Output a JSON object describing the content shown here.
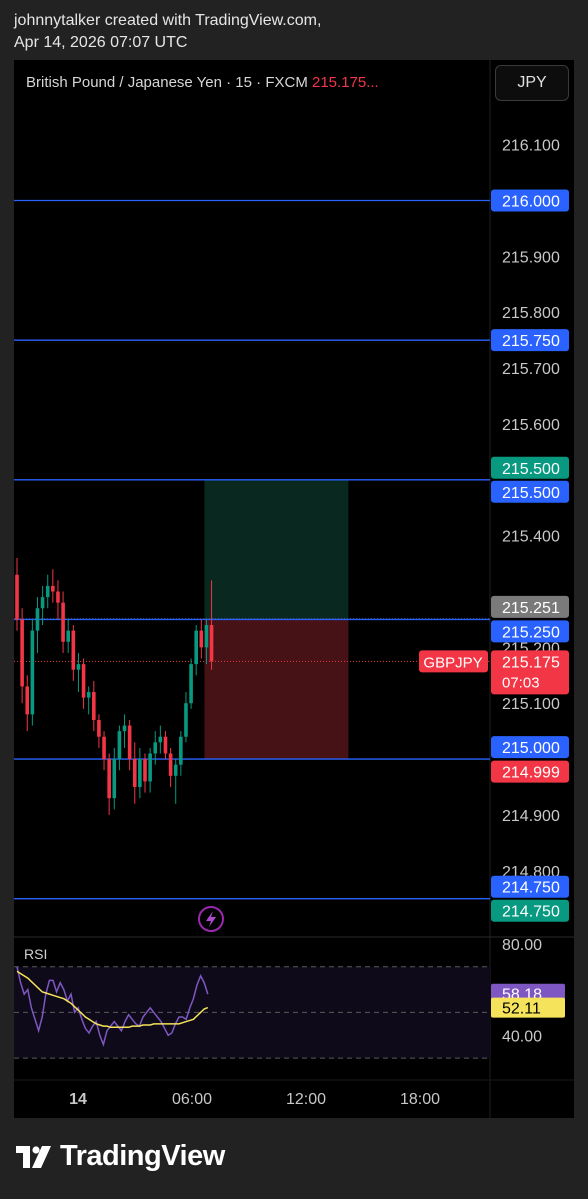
{
  "attribution": {
    "line1": "johnnytalker created with TradingView.com,",
    "line2": "Apr 14, 2026 07:07 UTC"
  },
  "header": {
    "symbol_text": "British Pound / Japanese Yen · 15 · FXCM",
    "price_text": "215.175...",
    "currency_button": "JPY"
  },
  "colors": {
    "up": "#089981",
    "down": "#f23645",
    "hline": "#2962ff",
    "rsi_line": "#7e57c2",
    "rsi_ma": "#f5e35b",
    "panel_bg": "#000000",
    "page_bg": "#222222"
  },
  "icons": {
    "alert": "lightning-bolt-icon",
    "logo": "tradingview-logo-icon"
  },
  "chart_data": {
    "type": "candlestick",
    "title": "British Pound / Japanese Yen · 15 · FXCM",
    "symbol": "GBPJPY",
    "ylim": [
      214.685,
      216.18
    ],
    "y_ticks": [
      "216.100",
      "215.900",
      "215.800",
      "215.700",
      "215.600",
      "215.400",
      "215.200",
      "215.100",
      "214.900",
      "214.800"
    ],
    "x_ticks": [
      "14",
      "06:00",
      "12:00",
      "18:00"
    ],
    "horizontal_lines": [
      216.0,
      215.75,
      215.5,
      215.25,
      215.0,
      214.75
    ],
    "candles": [
      [
        215.33,
        215.36,
        215.23,
        215.25
      ],
      [
        215.25,
        215.27,
        215.1,
        215.13
      ],
      [
        215.13,
        215.15,
        215.05,
        215.08
      ],
      [
        215.08,
        215.25,
        215.06,
        215.23
      ],
      [
        215.23,
        215.29,
        215.19,
        215.27
      ],
      [
        215.27,
        215.31,
        215.24,
        215.29
      ],
      [
        215.29,
        215.33,
        215.27,
        215.31
      ],
      [
        215.31,
        215.34,
        215.28,
        215.3
      ],
      [
        215.3,
        215.32,
        215.25,
        215.28
      ],
      [
        215.28,
        215.3,
        215.19,
        215.21
      ],
      [
        215.21,
        215.25,
        215.19,
        215.23
      ],
      [
        215.23,
        215.24,
        215.14,
        215.16
      ],
      [
        215.16,
        215.19,
        215.12,
        215.17
      ],
      [
        215.17,
        215.18,
        215.09,
        215.11
      ],
      [
        215.11,
        215.13,
        215.08,
        215.12
      ],
      [
        215.12,
        215.14,
        215.05,
        215.07
      ],
      [
        215.07,
        215.08,
        215.02,
        215.04
      ],
      [
        215.04,
        215.05,
        214.98,
        215.0
      ],
      [
        215.0,
        215.01,
        214.9,
        214.93
      ],
      [
        214.93,
        215.02,
        214.91,
        215.0
      ],
      [
        215.0,
        215.06,
        214.98,
        215.05
      ],
      [
        215.05,
        215.08,
        215.02,
        215.06
      ],
      [
        215.06,
        215.07,
        214.98,
        215.0
      ],
      [
        215.0,
        215.03,
        214.92,
        214.95
      ],
      [
        214.95,
        215.02,
        214.93,
        215.0
      ],
      [
        215.0,
        215.01,
        214.94,
        214.96
      ],
      [
        214.96,
        215.02,
        214.94,
        215.01
      ],
      [
        215.01,
        215.05,
        214.99,
        215.03
      ],
      [
        215.03,
        215.06,
        215.01,
        215.04
      ],
      [
        215.04,
        215.05,
        215.0,
        215.01
      ],
      [
        215.01,
        215.02,
        214.95,
        214.97
      ],
      [
        214.97,
        215.0,
        214.92,
        214.99
      ],
      [
        214.99,
        215.05,
        214.97,
        215.04
      ],
      [
        215.04,
        215.12,
        215.03,
        215.1
      ],
      [
        215.1,
        215.18,
        215.09,
        215.17
      ],
      [
        215.17,
        215.24,
        215.15,
        215.23
      ],
      [
        215.23,
        215.25,
        215.18,
        215.2
      ],
      [
        215.2,
        215.25,
        215.17,
        215.24
      ],
      [
        215.24,
        215.32,
        215.16,
        215.175
      ]
    ],
    "position": {
      "type": "short",
      "entry": 215.25,
      "target": 215.0,
      "stop": 215.5,
      "start_bar": 37,
      "bars": 30
    },
    "price_labels": [
      {
        "text": "216.000",
        "value": 216.0,
        "color": "#2962ff"
      },
      {
        "text": "215.750",
        "value": 215.75,
        "color": "#2962ff"
      },
      {
        "text": "215.500",
        "value": 215.5,
        "color": "#089981",
        "offset": -12
      },
      {
        "text": "215.500",
        "value": 215.5,
        "color": "#2962ff",
        "offset": 12
      },
      {
        "text": "215.251",
        "value": 215.251,
        "color": "#7a7a7a",
        "offset": -12
      },
      {
        "text": "215.250",
        "value": 215.25,
        "color": "#2962ff",
        "offset": 12
      },
      {
        "text": "215.000",
        "value": 215.0,
        "color": "#2962ff",
        "offset": -12
      },
      {
        "text": "214.999",
        "value": 214.999,
        "color": "#f23645",
        "offset": 12
      },
      {
        "text": "214.750",
        "value": 214.75,
        "color": "#2962ff",
        "offset": -12
      },
      {
        "text": "214.750",
        "value": 214.75,
        "color": "#089981",
        "offset": 12
      }
    ],
    "last_price": {
      "symbol": "GBPJPY",
      "value": "215.175",
      "countdown": "07:03",
      "y": 215.175
    },
    "rsi": {
      "label": "RSI",
      "ylim": [
        27,
        83
      ],
      "y_ticks": [
        "80.00",
        "40.00"
      ],
      "bands": [
        70,
        50,
        30
      ],
      "values": [
        70,
        63,
        58,
        60,
        52,
        47,
        42,
        48,
        58,
        64,
        64,
        59,
        63,
        60,
        55,
        58,
        50,
        52,
        47,
        43,
        41,
        44,
        46,
        40,
        36,
        42,
        44,
        46,
        44,
        42,
        46,
        49,
        47,
        45,
        44,
        48,
        50,
        52,
        50,
        48,
        46,
        43,
        40,
        41,
        45,
        48,
        48,
        47,
        52,
        56,
        62,
        66,
        63,
        58
      ],
      "ma": [
        68,
        67,
        66,
        65,
        63.5,
        62,
        60.5,
        59,
        58.5,
        58,
        57.5,
        57,
        56.5,
        56,
        55,
        54,
        52.5,
        51,
        49.5,
        48,
        47,
        46,
        45,
        44.5,
        44,
        44,
        43.5,
        43.5,
        43.5,
        43.5,
        43.5,
        43.5,
        44,
        44,
        44,
        44.5,
        44.5,
        44.5,
        45,
        45,
        45,
        45,
        45,
        45,
        45,
        45,
        45.5,
        46,
        46.5,
        47,
        48.5,
        50,
        51.5,
        52.11
      ],
      "labels": [
        {
          "text": "58.18",
          "value": 58.18,
          "color": "#7e57c2"
        },
        {
          "text": "52.11",
          "value": 52.11,
          "color": "#f5e35b"
        }
      ]
    }
  },
  "footer": {
    "logo_text": "TradingView"
  }
}
